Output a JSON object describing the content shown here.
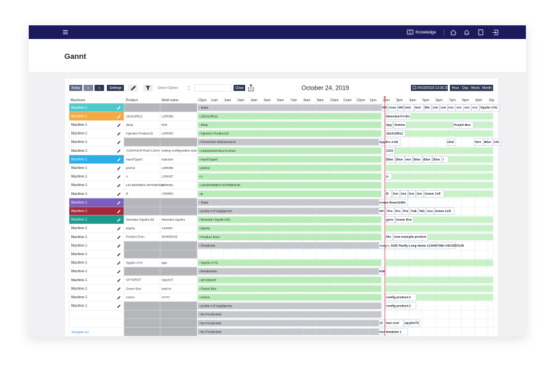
{
  "nav": {
    "knowledge": "Knowledge"
  },
  "header": {
    "title": "Gannt"
  },
  "toolbar": {
    "today": "Today",
    "prev": "‹",
    "next": "›",
    "settings": "Settings",
    "select": "Select Option",
    "clear": "Clear",
    "date_title": "October 24, 2019",
    "timestamp": "24/10/2019 13:36:20",
    "views": [
      "Hour",
      "Day",
      "Week",
      "Month"
    ]
  },
  "columns": {
    "machines": "Machines",
    "product": "Product",
    "mold": "Mold name"
  },
  "hours": [
    "12pm",
    "1am",
    "2am",
    "3am",
    "4am",
    "5am",
    "6am",
    "7am",
    "8am",
    "9am",
    "10am",
    "11am",
    "12pm",
    "1pm",
    "2pm",
    "3pm",
    "4pm",
    "5pm",
    "6pm",
    "7pm",
    "8pm",
    "9pm",
    "10p"
  ],
  "rows": [
    {
      "machine": "Machine-1",
      "machine_color": "#4ccaca",
      "product": null,
      "mold": null,
      "task": "‹ Tests",
      "bar_color": "#c5c7cc",
      "items": [
        "MO",
        "Asse",
        "MO",
        "test",
        "test",
        "Blu",
        "con",
        "con",
        "ccc",
        "ccc",
        "ccc",
        "ccc",
        "Spydo-J-H1"
      ]
    },
    {
      "machine": "Machine-1",
      "machine_color": "#f7a941",
      "product": "181016f512",
      "mold": "LDR009",
      "task": "‹ 181016f512",
      "bar_color": "#b8ecb8",
      "items": [
        "Moordan-PJ-Bo"
      ]
    },
    {
      "machine": "Machine-1",
      "machine_color": "#ffffff",
      "product": "deep",
      "mold": "ROI",
      "task": "‹ deep",
      "bar_color": "#b8ecb8",
      "items": [
        "Spy",
        "Testmo",
        "Purple Box"
      ]
    },
    {
      "machine": "Machine-1",
      "machine_color": "#ffffff",
      "product": "Injection Product15",
      "mold": "LDR003",
      "task": "‹ Injection Product15",
      "bar_color": "#b8ecb8",
      "items": [
        "181016f512"
      ]
    },
    {
      "machine": "Machine-1",
      "machine_color": "#ffffff",
      "product": null,
      "mold": null,
      "task": "‹ Preventive Maintenance",
      "bar_color": "#c5c7cc",
      "items": [
        "Spydro-J-H2",
        "ufsd",
        "Test",
        "Blue",
        "Chi"
      ]
    },
    {
      "machine": "Machine-1",
      "machine_color": "#ffffff",
      "product": "A23434234-Red-0.2mm",
      "mold": "testing configuration auto",
      "task": "‹ A23434234-Red-0.2mm",
      "bar_color": "#b8ecb8",
      "items": [
        "2222"
      ]
    },
    {
      "machine": "Machine-1",
      "machine_color": "#2aaee8",
      "product": "machType0",
      "mold": "Injection",
      "task": "‹ machType0",
      "bar_color": "#b8ecb8",
      "items": [
        "Blue",
        "Blue",
        "wer",
        "Blue",
        "Blue",
        "Blue",
        "!"
      ]
    },
    {
      "machine": "Machine-1",
      "machine_color": "#ffffff",
      "product": "prdAxi",
      "mold": "LDR008",
      "task": "‹ prdAxi",
      "bar_color": "#b8ecb8",
      "items": []
    },
    {
      "machine": "Machine-1",
      "machine_color": "#ffffff",
      "product": "A",
      "mold": "LDR007",
      "task": "‹ A",
      "bar_color": "#b8ecb8",
      "items": [
        "A"
      ]
    },
    {
      "machine": "Machine-1",
      "machine_color": "#ffffff",
      "product": "LEADERMES NOTEBOOK",
      "mold": "LDR002",
      "task": "‹ LEADERMES NOTEBOOK",
      "bar_color": "#b8ecb8",
      "items": []
    },
    {
      "machine": "Machine-1",
      "machine_color": "#ffffff",
      "product": "B",
      "mold": "ASM801",
      "task": "‹ B",
      "bar_color": "#b8ecb8",
      "items": [
        "B",
        "Gre",
        "Gre",
        "Gre",
        "Gre",
        "Green Cell"
      ]
    },
    {
      "machine": "Machine-1",
      "machine_color": "#7b5fbe",
      "product": null,
      "mold": null,
      "task": "‹ Tests",
      "bar_color": "#c5c7cc",
      "items": [
        "Green Board1065"
      ]
    },
    {
      "machine": "Machine-1",
      "machine_color": "#a3283c",
      "product": null,
      "mold": null,
      "task": "‹ product of negligence",
      "bar_color": "#c5c7cc",
      "items": [
        "SP-",
        "Pro",
        "Pro",
        "Pro",
        "Tub",
        "Tub",
        "Ass",
        "Green Cell"
      ]
    },
    {
      "machine": "Machine-1",
      "machine_color": "#1b9a8c",
      "product": "Moordan-Spydro-B2",
      "mold": "Moordan-Spydro",
      "task": "‹ Moordan-Spydro-B2",
      "bar_color": "#b8ecb8",
      "items": [
        "gxxx",
        "Green Box"
      ]
    },
    {
      "machine": "Machine-1",
      "machine_color": "#ffffff",
      "product": "piyyoy",
      "mold": "A12324",
      "task": "‹ piyyoy",
      "bar_color": "#b8ecb8",
      "items": []
    },
    {
      "machine": "Machine-1",
      "machine_color": "#ffffff",
      "product": "Product Eren",
      "mold": "304895345",
      "task": "‹ Product Eren",
      "bar_color": "#b8ecb8",
      "items": [
        "the",
        "new example product"
      ]
    },
    {
      "machine": "Machine-1",
      "machine_color": "#ffffff",
      "product": null,
      "mold": null,
      "task": "‹ Shutdown",
      "bar_color": "#c5c7cc",
      "items": [
        "Assy L SIDE Really Long Name 1234567890 ABCDEFGHI"
      ]
    },
    {
      "machine": "Machine-1",
      "machine_color": "#ffffff",
      "product": null,
      "mold": null,
      "task": null,
      "bar_color": null,
      "items": []
    },
    {
      "machine": "Machine-1",
      "machine_color": "#ffffff",
      "product": "Spydo-J-H1",
      "mold": "qqa",
      "task": "‹ Spydo-J-H1",
      "bar_color": "#b8ecb8",
      "items": []
    },
    {
      "machine": "Machine-1",
      "machine_color": "#ffffff",
      "product": null,
      "mold": null,
      "task": "‹ Breakdown",
      "bar_color": "#c5c7cc",
      "items": [
        "938"
      ]
    },
    {
      "machine": "Machine-1",
      "machine_color": "#ffffff",
      "product": "SPYDROT",
      "mold": "SpyJroT",
      "task": "‹ SPYDROT",
      "bar_color": "#b8ecb8",
      "items": []
    },
    {
      "machine": "Machine-1",
      "machine_color": "#ffffff",
      "product": "Green Box",
      "mold": "testAxi",
      "task": "‹ Green Box",
      "bar_color": "#b8ecb8",
      "items": []
    },
    {
      "machine": "Machine-1",
      "machine_color": "#ffffff",
      "product": "momo",
      "mold": "XYXY",
      "task": "‹ momo",
      "bar_color": "#b8ecb8",
      "items": [
        "config product 2"
      ]
    },
    {
      "machine": "Machine-1",
      "machine_color": "#ffffff",
      "product": null,
      "mold": null,
      "task": "‹ product of negligence",
      "bar_color": "#c5c7cc",
      "items": [
        "config product 2"
      ]
    },
    {
      "machine": null,
      "machine_color": "#ffffff",
      "product": null,
      "mold": null,
      "task": "‹ No Production",
      "bar_color": "#c5c7cc",
      "items": []
    },
    {
      "machine": null,
      "machine_color": "#ffffff",
      "product": null,
      "mold": null,
      "task": "‹ No Production",
      "bar_color": "#c5c7cc",
      "items": [
        "23",
        "test cool",
        "spydroT5"
      ]
    },
    {
      "machine": null,
      "machine_color": "#ffffff",
      "product": null,
      "mold": null,
      "task": "‹ No Production",
      "bar_color": "#c5c7cc",
      "items": [
        "test template 1"
      ]
    }
  ],
  "footer": {
    "template": "Template 1/1"
  }
}
